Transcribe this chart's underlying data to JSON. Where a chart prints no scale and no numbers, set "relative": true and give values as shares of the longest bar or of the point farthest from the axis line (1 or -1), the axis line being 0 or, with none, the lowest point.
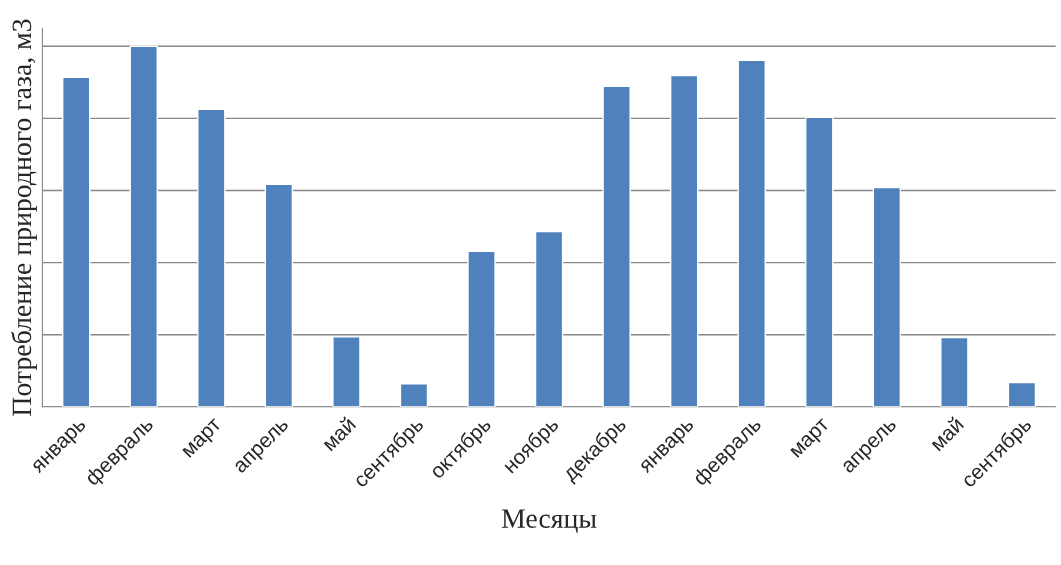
{
  "chart_data": {
    "type": "bar",
    "xlabel": "Месяцы",
    "ylabel": "Потребление природного газа, м3",
    "categories": [
      "январь",
      "февраль",
      "март",
      "апрель",
      "май",
      "сентябрь",
      "октябрь",
      "ноябрь",
      "декабрь",
      "январь",
      "февраль",
      "март",
      "апрель",
      "май",
      "сентябрь"
    ],
    "values": [
      0.914,
      1,
      0.825,
      0.617,
      0.194,
      0.064,
      0.431,
      0.486,
      0.889,
      0.919,
      0.961,
      0.803,
      0.608,
      0.192,
      0.067
    ],
    "color": "#4f81bd",
    "relative": true,
    "grid": "y"
  }
}
